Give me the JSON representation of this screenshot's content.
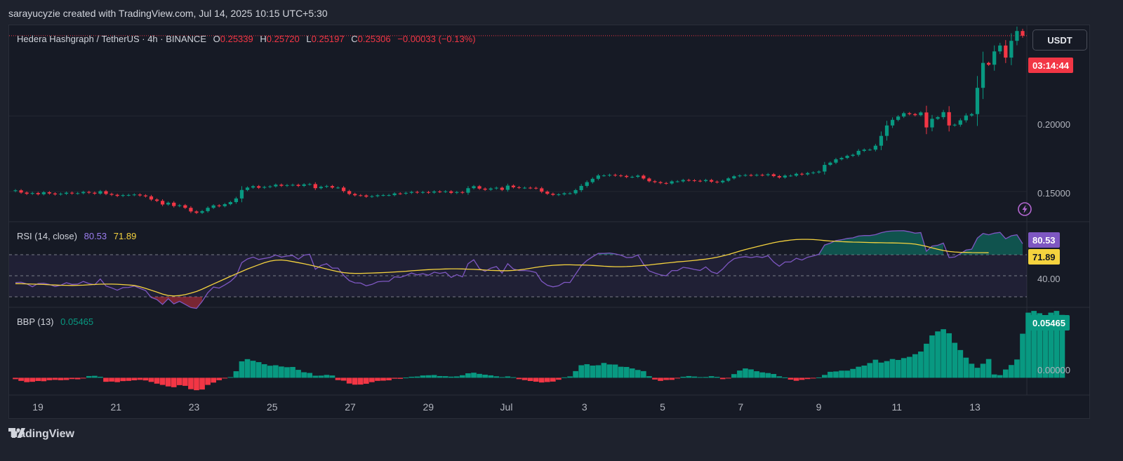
{
  "credit": "sarayucyzie created with TradingView.com, Jul 14, 2025 10:15 UTC+5:30",
  "legend": {
    "symbol": "Hedera Hashgraph / TetherUS · 4h · BINANCE",
    "o_label": "O",
    "o_value": "0.25339",
    "h_label": "H",
    "h_value": "0.25720",
    "l_label": "L",
    "l_value": "0.25197",
    "c_label": "C",
    "c_value": "0.25306",
    "change": "−0.00033 (−0.13%)"
  },
  "currency_button": "USDT",
  "countdown": "03:14:44",
  "rsi": {
    "label": "RSI (14, close)",
    "rsi_value": "80.53",
    "ma_value": "71.89",
    "tag_rsi": "80.53",
    "tag_ma": "71.89",
    "level_label": "40.00"
  },
  "bbp": {
    "label": "BBP (13)",
    "value": "0.05465",
    "tag": "0.05465",
    "zero_label": "0.00000"
  },
  "price_axis": [
    "0.20000",
    "0.15000"
  ],
  "footer": "TradingView",
  "colors": {
    "up": "#089981",
    "down": "#f23645",
    "rsi": "#7e57c2",
    "rsi_ma": "#f5d33e",
    "background": "#161a25"
  },
  "chart_data": [
    {
      "type": "candlestick",
      "title": "Hedera Hashgraph / TetherUS · 4h · BINANCE",
      "x_ticks": [
        "19",
        "21",
        "23",
        "25",
        "27",
        "29",
        "Jul",
        "3",
        "5",
        "7",
        "9",
        "11",
        "13"
      ],
      "ylim": [
        0.13,
        0.26
      ],
      "y_ticks": [
        0.15,
        0.2
      ],
      "series": [
        {
          "name": "close",
          "values": [
            0.1508,
            0.1493,
            0.1485,
            0.149,
            0.1482,
            0.1495,
            0.1487,
            0.1481,
            0.1485,
            0.1492,
            0.1487,
            0.1489,
            0.1497,
            0.1492,
            0.1486,
            0.1502,
            0.1484,
            0.1478,
            0.1471,
            0.1476,
            0.1477,
            0.148,
            0.1474,
            0.1468,
            0.1447,
            0.1438,
            0.1414,
            0.1426,
            0.1404,
            0.1409,
            0.1392,
            0.1368,
            0.1359,
            0.137,
            0.1392,
            0.1408,
            0.1403,
            0.1416,
            0.143,
            0.1454,
            0.151,
            0.1526,
            0.1535,
            0.1525,
            0.153,
            0.1534,
            0.1545,
            0.1538,
            0.1542,
            0.1544,
            0.1537,
            0.1547,
            0.1549,
            0.1522,
            0.1531,
            0.1536,
            0.1526,
            0.1526,
            0.1503,
            0.1484,
            0.1475,
            0.1474,
            0.1466,
            0.1469,
            0.1475,
            0.1476,
            0.1476,
            0.1487,
            0.1486,
            0.1491,
            0.1497,
            0.1493,
            0.1496,
            0.1493,
            0.15,
            0.1498,
            0.1501,
            0.1491,
            0.1496,
            0.1492,
            0.1522,
            0.1535,
            0.1519,
            0.1512,
            0.152,
            0.1525,
            0.1511,
            0.1539,
            0.1528,
            0.1525,
            0.1525,
            0.1524,
            0.1521,
            0.1499,
            0.1485,
            0.1478,
            0.1481,
            0.1488,
            0.1488,
            0.1509,
            0.1537,
            0.1562,
            0.1584,
            0.1606,
            0.1606,
            0.161,
            0.1606,
            0.1603,
            0.1596,
            0.1597,
            0.1605,
            0.1586,
            0.1568,
            0.1562,
            0.1556,
            0.1553,
            0.1567,
            0.1567,
            0.1576,
            0.1574,
            0.1571,
            0.1569,
            0.1576,
            0.1565,
            0.1561,
            0.1571,
            0.1587,
            0.1601,
            0.1606,
            0.1609,
            0.1607,
            0.161,
            0.1608,
            0.1614,
            0.1602,
            0.1593,
            0.1605,
            0.1605,
            0.1617,
            0.1613,
            0.1622,
            0.1626,
            0.1632,
            0.1676,
            0.1691,
            0.1713,
            0.1722,
            0.1736,
            0.1743,
            0.1769,
            0.1777,
            0.1777,
            0.1803,
            0.1868,
            0.1937,
            0.1974,
            0.1996,
            0.2018,
            0.2012,
            0.2005,
            0.2023,
            0.1924,
            0.1981,
            0.1992,
            0.2025,
            0.1937,
            0.1942,
            0.1971,
            0.2003,
            0.2012,
            0.2186,
            0.2351,
            0.2339,
            0.2427,
            0.2466,
            0.2386,
            0.2497,
            0.2562,
            0.2531
          ]
        }
      ]
    },
    {
      "type": "line",
      "title": "RSI (14, close)",
      "ylim": [
        20,
        100
      ],
      "levels": [
        70,
        50,
        30
      ],
      "series": [
        {
          "name": "RSI",
          "values": [
            43.6,
            43.8,
            42.3,
            39.6,
            42.6,
            42.9,
            41.7,
            39.8,
            41,
            43.4,
            41.8,
            42.1,
            44.6,
            42.6,
            41.5,
            46.9,
            40.3,
            38.5,
            36.3,
            38.7,
            38.9,
            40.2,
            38.1,
            35.9,
            29.4,
            27.4,
            22.7,
            28.2,
            23.3,
            25.7,
            22.8,
            19.8,
            18.9,
            25.6,
            33.9,
            39.3,
            38.3,
            41.3,
            44.6,
            49.6,
            62.5,
            65.9,
            67.7,
            65.5,
            66.5,
            67.4,
            69.7,
            67.7,
            68.7,
            69.2,
            65.7,
            69.6,
            70.4,
            56.2,
            59.7,
            61.5,
            57.3,
            57.3,
            50.4,
            45.4,
            43.3,
            43.1,
            40.5,
            41.8,
            44.3,
            44.7,
            44.7,
            49,
            48.4,
            50.3,
            52.6,
            50.8,
            52,
            50.5,
            53.4,
            52.3,
            53.3,
            48.5,
            51.1,
            48.9,
            61.5,
            65.2,
            56.8,
            54.2,
            57.2,
            58.7,
            52.6,
            61.5,
            56.4,
            54.9,
            55,
            54.4,
            53.1,
            44.8,
            41,
            39.5,
            40.5,
            43.7,
            43.6,
            51.5,
            59.6,
            64.5,
            68.1,
            71.2,
            71.2,
            71.6,
            70.7,
            69.6,
            67.3,
            67.5,
            69.8,
            61,
            54.6,
            52.6,
            50.8,
            50,
            54.9,
            54.9,
            58,
            57.2,
            56,
            55.1,
            58.4,
            53.7,
            52.1,
            56.4,
            62.2,
            66.2,
            67.4,
            68.2,
            67.3,
            68.3,
            67.4,
            69.1,
            63.1,
            59.1,
            63.1,
            63.1,
            66.6,
            64.9,
            67.6,
            68.8,
            70.5,
            79.2,
            81,
            83.4,
            84.2,
            85.5,
            86,
            87.7,
            88.2,
            88.2,
            89.1,
            90.9,
            92.1,
            92.6,
            92.7,
            92.8,
            91.8,
            90.5,
            91,
            73.3,
            78.2,
            79,
            81,
            67.3,
            67.8,
            71,
            74.4,
            75.2,
            85.8,
            90.2,
            88.9,
            90.5,
            91.2,
            85.2,
            88,
            88.9,
            80.5
          ]
        },
        {
          "name": "RSI-based MA",
          "values": [
            42.5,
            42.4,
            42.3,
            42.1,
            41.9,
            41.7,
            41.4,
            41.2,
            41,
            40.9,
            40.8,
            40.9,
            41.1,
            41.4,
            41.7,
            42,
            42.1,
            42.1,
            41.9,
            41.6,
            41.3,
            40.8,
            39.6,
            38,
            36.3,
            34.5,
            32.6,
            31.3,
            30.8,
            31.2,
            32.1,
            33.5,
            35.1,
            37.3,
            39.7,
            42.2,
            44.6,
            47,
            49.4,
            51.8,
            54.1,
            56.4,
            58.5,
            60.5,
            62.4,
            63.9,
            64.7,
            65,
            64.4,
            63.5,
            62.5,
            61.4,
            60.3,
            59,
            57.7,
            56.4,
            55.1,
            53.9,
            53,
            52.5,
            52.3,
            52.3,
            52.4,
            52.6,
            52.8,
            53,
            53.3,
            53.6,
            53.9,
            54.3,
            54.7,
            55.1,
            55.5,
            55.8,
            56.1,
            56.3,
            56.5,
            56.6,
            56.6,
            56.5,
            56.3,
            56.1,
            55.8,
            55.4,
            55.1,
            54.9,
            54.8,
            54.8,
            55.1,
            55.6,
            56.3,
            57.1,
            58,
            58.7,
            59.4,
            59.9,
            60.2,
            60.4,
            60.4,
            60.3,
            60.2,
            60.1,
            59.8,
            59.5,
            59.1,
            58.8,
            58.6,
            58.6,
            58.7,
            59,
            59.4,
            59.8,
            60.3,
            60.9,
            61.5,
            62.1,
            62.6,
            63.2,
            63.6,
            64.1,
            64.6,
            65.2,
            65.8,
            66.6,
            67.6,
            68.8,
            70.2,
            71.7,
            73.4,
            74.9,
            76.3,
            77.6,
            78.9,
            80.2,
            81.4,
            82.4,
            83.2,
            83.9,
            84.4,
            84.6,
            84.6,
            84.4,
            84,
            83.5,
            83,
            82.7,
            82.4,
            82.2,
            82,
            81.9,
            81.7,
            81.6,
            81.5,
            81.4,
            81.3,
            81.2,
            81.1,
            80.9,
            80.6,
            80.1,
            79.1,
            77.9,
            76.5,
            75.2,
            74,
            73.1,
            72.6,
            72.3,
            72.2,
            72,
            71.9,
            71.9,
            71.89
          ]
        }
      ]
    },
    {
      "type": "bar",
      "title": "BBP (13)",
      "ylim": [
        -0.015,
        0.06
      ],
      "series": [
        {
          "name": "BBP",
          "values": [
            -0.0012,
            -0.0027,
            -0.0038,
            -0.0035,
            -0.0028,
            -0.003,
            -0.0021,
            -0.0018,
            -0.0021,
            -0.0019,
            -0.0011,
            -0.0013,
            -0.0005,
            0.0015,
            0.0017,
            0.0009,
            -0.0035,
            -0.0033,
            -0.0038,
            -0.0029,
            -0.0027,
            -0.0022,
            -0.0018,
            -0.0023,
            -0.0036,
            -0.0051,
            -0.0062,
            -0.0075,
            -0.0082,
            -0.0064,
            -0.007,
            -0.0099,
            -0.0108,
            -0.0102,
            -0.0062,
            -0.0042,
            -0.0021,
            -0.0005,
            0.0006,
            0.0057,
            0.0143,
            0.0162,
            0.0148,
            0.0136,
            0.0118,
            0.0105,
            0.0109,
            0.0098,
            0.0092,
            0.0094,
            0.0069,
            0.0048,
            0.0042,
            0.0018,
            0.0019,
            0.0025,
            0.002,
            -0.002,
            -0.0025,
            -0.005,
            -0.006,
            -0.0059,
            -0.0052,
            -0.0038,
            -0.0027,
            -0.0025,
            -0.0022,
            -0.0008,
            -0.0009,
            0.0002,
            0.0009,
            0.0011,
            0.002,
            0.0022,
            0.0024,
            0.0015,
            0.0014,
            0.001,
            0.0012,
            0.0022,
            0.0039,
            0.0044,
            0.0034,
            0.0027,
            0.0021,
            0.0013,
            0.0006,
            0.0012,
            0.0005,
            -0.0012,
            -0.002,
            -0.0028,
            -0.0034,
            -0.0041,
            -0.0037,
            -0.0033,
            -0.0017,
            0.0004,
            0.0012,
            0.0058,
            0.0109,
            0.0118,
            0.0106,
            0.0109,
            0.0129,
            0.0116,
            0.0115,
            0.0096,
            0.0094,
            0.0081,
            0.0068,
            0.0058,
            0.0014,
            -0.0015,
            -0.0027,
            -0.0019,
            -0.0018,
            -0.0006,
            0.0009,
            0.0015,
            0.0011,
            0.0006,
            0.0007,
            0.0014,
            0.0008,
            -0.0012,
            -0.0004,
            0.0032,
            0.0063,
            0.0081,
            0.0073,
            0.0057,
            0.0047,
            0.0041,
            0.0033,
            0.0013,
            0.0003,
            -0.0016,
            -0.0026,
            -0.0018,
            -0.0011,
            -0.0006,
            0.0003,
            0.0025,
            0.0052,
            0.0055,
            0.0062,
            0.0062,
            0.0077,
            0.0096,
            0.0106,
            0.0128,
            0.0157,
            0.0132,
            0.0145,
            0.0163,
            0.0155,
            0.0171,
            0.0182,
            0.0205,
            0.0228,
            0.0296,
            0.0368,
            0.0403,
            0.0422,
            0.0387,
            0.0304,
            0.0241,
            0.0175,
            0.0122,
            0.0087,
            0.0122,
            0.0163,
            0.0029,
            0.0023,
            0.0072,
            0.0111,
            0.0159,
            0.0383,
            0.0566,
            0.0581,
            0.0561,
            0.0416,
            0.0566,
            0.0581,
            0.05465
          ]
        }
      ]
    }
  ]
}
